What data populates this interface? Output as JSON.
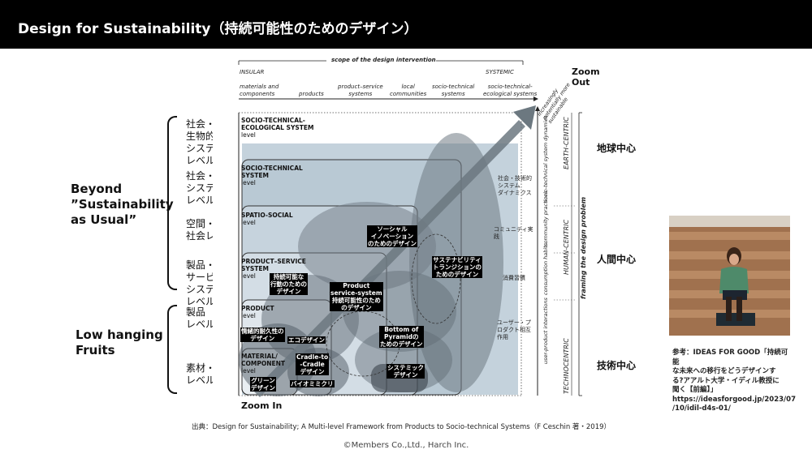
{
  "header": {
    "title": "Design for Sustainability（持続可能性のためのデザイン）"
  },
  "left": {
    "beyond": [
      "Beyond",
      "”Sustainability",
      " as Usual”"
    ],
    "low": [
      "Low hanging",
      "Fruits"
    ],
    "levels": [
      [
        "社会・技術・",
        "生物的",
        "システム",
        "レベル"
      ],
      [
        "社会・技術",
        "システム",
        "レベル"
      ],
      [
        "空間・",
        "社会レベル"
      ],
      [
        "製品・",
        "サービス",
        "システム",
        "レベル"
      ],
      [
        "製品",
        "レベル"
      ],
      [
        "素材・部品",
        "レベル"
      ]
    ]
  },
  "diagram": {
    "scope": "scope of the design intervention",
    "insular": "INSULAR",
    "systemic": "SYSTEMIC",
    "zoom_out": "Zoom Out",
    "zoom_in": "Zoom In",
    "columns": [
      [
        "materials and",
        "components"
      ],
      [
        "products"
      ],
      [
        "product–service",
        "systems"
      ],
      [
        "local",
        "communities"
      ],
      [
        "socio-technical",
        "systems"
      ],
      [
        "socio-technical-",
        "ecological systems"
      ]
    ],
    "diag_caption": [
      "increasingly",
      "potentially more",
      "sustainable"
    ],
    "boxes": [
      [
        "SOCIO-TECHNICAL-",
        "ECOLOGICAL SYSTEM",
        "level"
      ],
      [
        "SOCIO-TECHNICAL",
        "SYSTEM",
        "level"
      ],
      [
        "SPATIO-SOCIAL",
        "level"
      ],
      [
        "PRODUCT–SERVICE",
        "SYSTEM",
        "level"
      ],
      [
        "PRODUCT",
        "level"
      ],
      [
        "MATERIAL/",
        "COMPONENT",
        "level"
      ]
    ],
    "dark_labels": [
      [
        "ソーシャル",
        "イノベーション",
        "のためのデザイン"
      ],
      [
        "サステナビリティ",
        "トランジションの",
        "ためのデザイン"
      ],
      [
        "持続可能な",
        "行動のための",
        "デザイン"
      ],
      [
        "Product",
        "service-system",
        "持続可能性のため",
        "のデザイン"
      ],
      [
        "情緒的耐久性の",
        "デザイン"
      ],
      [
        "エコデザイン"
      ],
      [
        "Bottom of",
        "Pyramidの",
        "ためのデザイン"
      ],
      [
        "Cradle-to",
        "-Cradle",
        "デザイン"
      ],
      [
        "グリーン",
        "デザイン"
      ],
      [
        "バイオミミクリ"
      ],
      [
        "システミック",
        "デザイン"
      ]
    ],
    "jp_side": [
      [
        "社会・技術的",
        "システム",
        "ダイナミクス"
      ],
      [
        "コミュニティ実",
        "践"
      ],
      [
        "消費習慣"
      ],
      [
        "ユーザー・プ",
        "ロダクト相互",
        "作用"
      ]
    ],
    "vert_side": [
      "socio-technical system dynamics",
      "community practices",
      "consumption habits",
      "user-product interactions"
    ],
    "vert_centric": [
      "EARTH-CENTRIC",
      "HUMAN-CENTRIC",
      "TECHNOCENTRIC"
    ],
    "framing": "framing the design problem"
  },
  "right": {
    "labels": [
      "地球中心",
      "人間中心",
      "技術中心"
    ]
  },
  "reference": {
    "lines": [
      "参考：IDEAS FOR GOOD「持続可能",
      "な未来への移行をどうデザインす",
      "る?アアルト大学・イディル教授に",
      "聞く【前編】」",
      "https://ideasforgood.jp/2023/07",
      "/10/idil-d4s-01/"
    ]
  },
  "source": "出典：Design for Sustainability; A Multi-level Framework from Products to Socio-technical Systems（F Ceschin 著・2019）",
  "copyright": "©Members Co.,Ltd., Harch Inc."
}
